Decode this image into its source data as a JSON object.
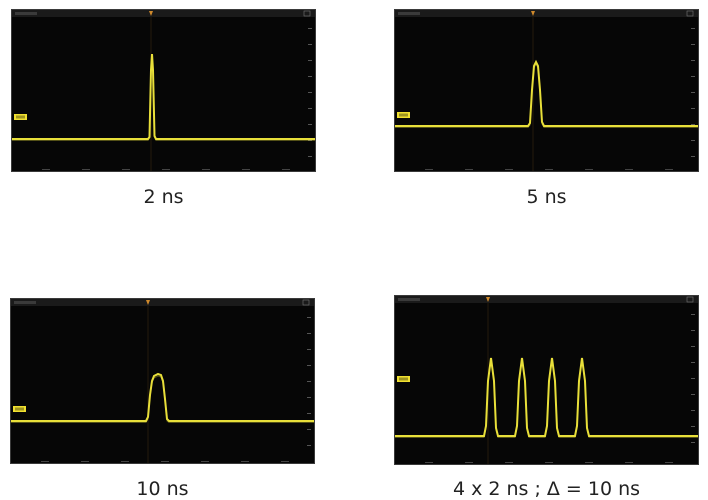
{
  "panels": [
    {
      "caption": "2 ns",
      "pulse_widths_ns": [
        2
      ]
    },
    {
      "caption": "5 ns",
      "pulse_widths_ns": [
        5
      ]
    },
    {
      "caption": "10 ns",
      "pulse_widths_ns": [
        10
      ]
    },
    {
      "caption": "4 x 2 ns ; Δ = 10 ns",
      "pulse_widths_ns": [
        2,
        2,
        2,
        2
      ],
      "spacing_ns": 10
    }
  ],
  "colors": {
    "trace": "#e8df3a",
    "marker": "#f0e030",
    "trigger": "#d08a2c",
    "screen_bg": "#060606",
    "grid": "#1c1c1c"
  }
}
